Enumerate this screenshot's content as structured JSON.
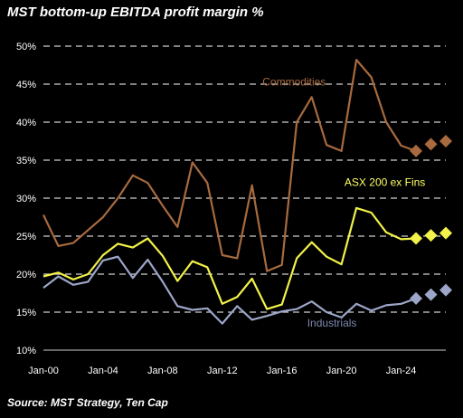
{
  "chart_title": "MST bottom-up EBITDA profit margin %",
  "source": "Source: MST Strategy, Ten Cap",
  "colors": {
    "background": "#000000",
    "grid": "#cfcfcf",
    "text": "#ffffff"
  },
  "chart_data": {
    "type": "line",
    "ylim": [
      10,
      50
    ],
    "yticks": [
      10,
      15,
      20,
      25,
      30,
      35,
      40,
      45,
      50
    ],
    "ytick_labels": [
      "10%",
      "15%",
      "20%",
      "25%",
      "30%",
      "35%",
      "40%",
      "45%",
      "50%"
    ],
    "xlim": [
      2000,
      2027
    ],
    "xticks": [
      2000,
      2004,
      2008,
      2012,
      2016,
      2020,
      2024
    ],
    "xtick_labels": [
      "Jan-00",
      "Jan-04",
      "Jan-08",
      "Jan-12",
      "Jan-16",
      "Jan-20",
      "Jan-24"
    ],
    "grid": "horizontal dashed",
    "legend": "inline labels",
    "series": [
      {
        "name": "Commodities",
        "color": "#a86a3e",
        "label_color": "#a86a3e",
        "x": [
          2000,
          2001,
          2002,
          2003,
          2004,
          2005,
          2006,
          2007,
          2008,
          2009,
          2010,
          2011,
          2012,
          2013,
          2014,
          2015,
          2016,
          2017,
          2018,
          2019,
          2020,
          2021,
          2022,
          2023,
          2024,
          2025
        ],
        "y": [
          27.8,
          23.7,
          24.1,
          25.8,
          27.5,
          30.0,
          33.0,
          32.0,
          29.0,
          26.2,
          34.7,
          32.0,
          22.5,
          22.1,
          31.7,
          20.4,
          21.2,
          40.0,
          43.3,
          37.0,
          36.2,
          48.2,
          45.9,
          40.0,
          36.9,
          36.2
        ],
        "forecast_x": [
          2025,
          2026,
          2027
        ],
        "forecast_y": [
          36.2,
          37.1,
          37.5
        ]
      },
      {
        "name": "ASX 200 ex Fins",
        "color": "#f2f24a",
        "label_color": "#ffff66",
        "x": [
          2000,
          2001,
          2002,
          2003,
          2004,
          2005,
          2006,
          2007,
          2008,
          2009,
          2010,
          2011,
          2012,
          2013,
          2014,
          2015,
          2016,
          2017,
          2018,
          2019,
          2020,
          2021,
          2022,
          2023,
          2024,
          2025
        ],
        "y": [
          19.7,
          20.2,
          19.3,
          20.0,
          22.5,
          24.0,
          23.5,
          24.7,
          22.4,
          19.1,
          21.7,
          20.9,
          16.1,
          17.0,
          19.4,
          15.4,
          16.0,
          22.1,
          24.2,
          22.3,
          21.3,
          28.7,
          28.1,
          25.5,
          24.6,
          24.7
        ],
        "forecast_x": [
          2025,
          2026,
          2027
        ],
        "forecast_y": [
          24.7,
          25.1,
          25.4
        ]
      },
      {
        "name": "Industrials",
        "color": "#9ca6c8",
        "label_color": "#7d88b0",
        "x": [
          2000,
          2001,
          2002,
          2003,
          2004,
          2005,
          2006,
          2007,
          2008,
          2009,
          2010,
          2011,
          2012,
          2013,
          2014,
          2015,
          2016,
          2017,
          2018,
          2019,
          2020,
          2021,
          2022,
          2023,
          2024,
          2025
        ],
        "y": [
          18.2,
          19.7,
          18.6,
          19.0,
          21.8,
          22.3,
          19.5,
          21.9,
          19.0,
          15.8,
          15.3,
          15.5,
          13.5,
          15.8,
          14.0,
          14.5,
          15.1,
          15.4,
          16.4,
          15.0,
          14.3,
          16.1,
          15.2,
          15.9,
          16.1,
          16.8
        ],
        "forecast_x": [
          2025,
          2026,
          2027
        ],
        "forecast_y": [
          16.8,
          17.3,
          17.9
        ]
      }
    ]
  }
}
